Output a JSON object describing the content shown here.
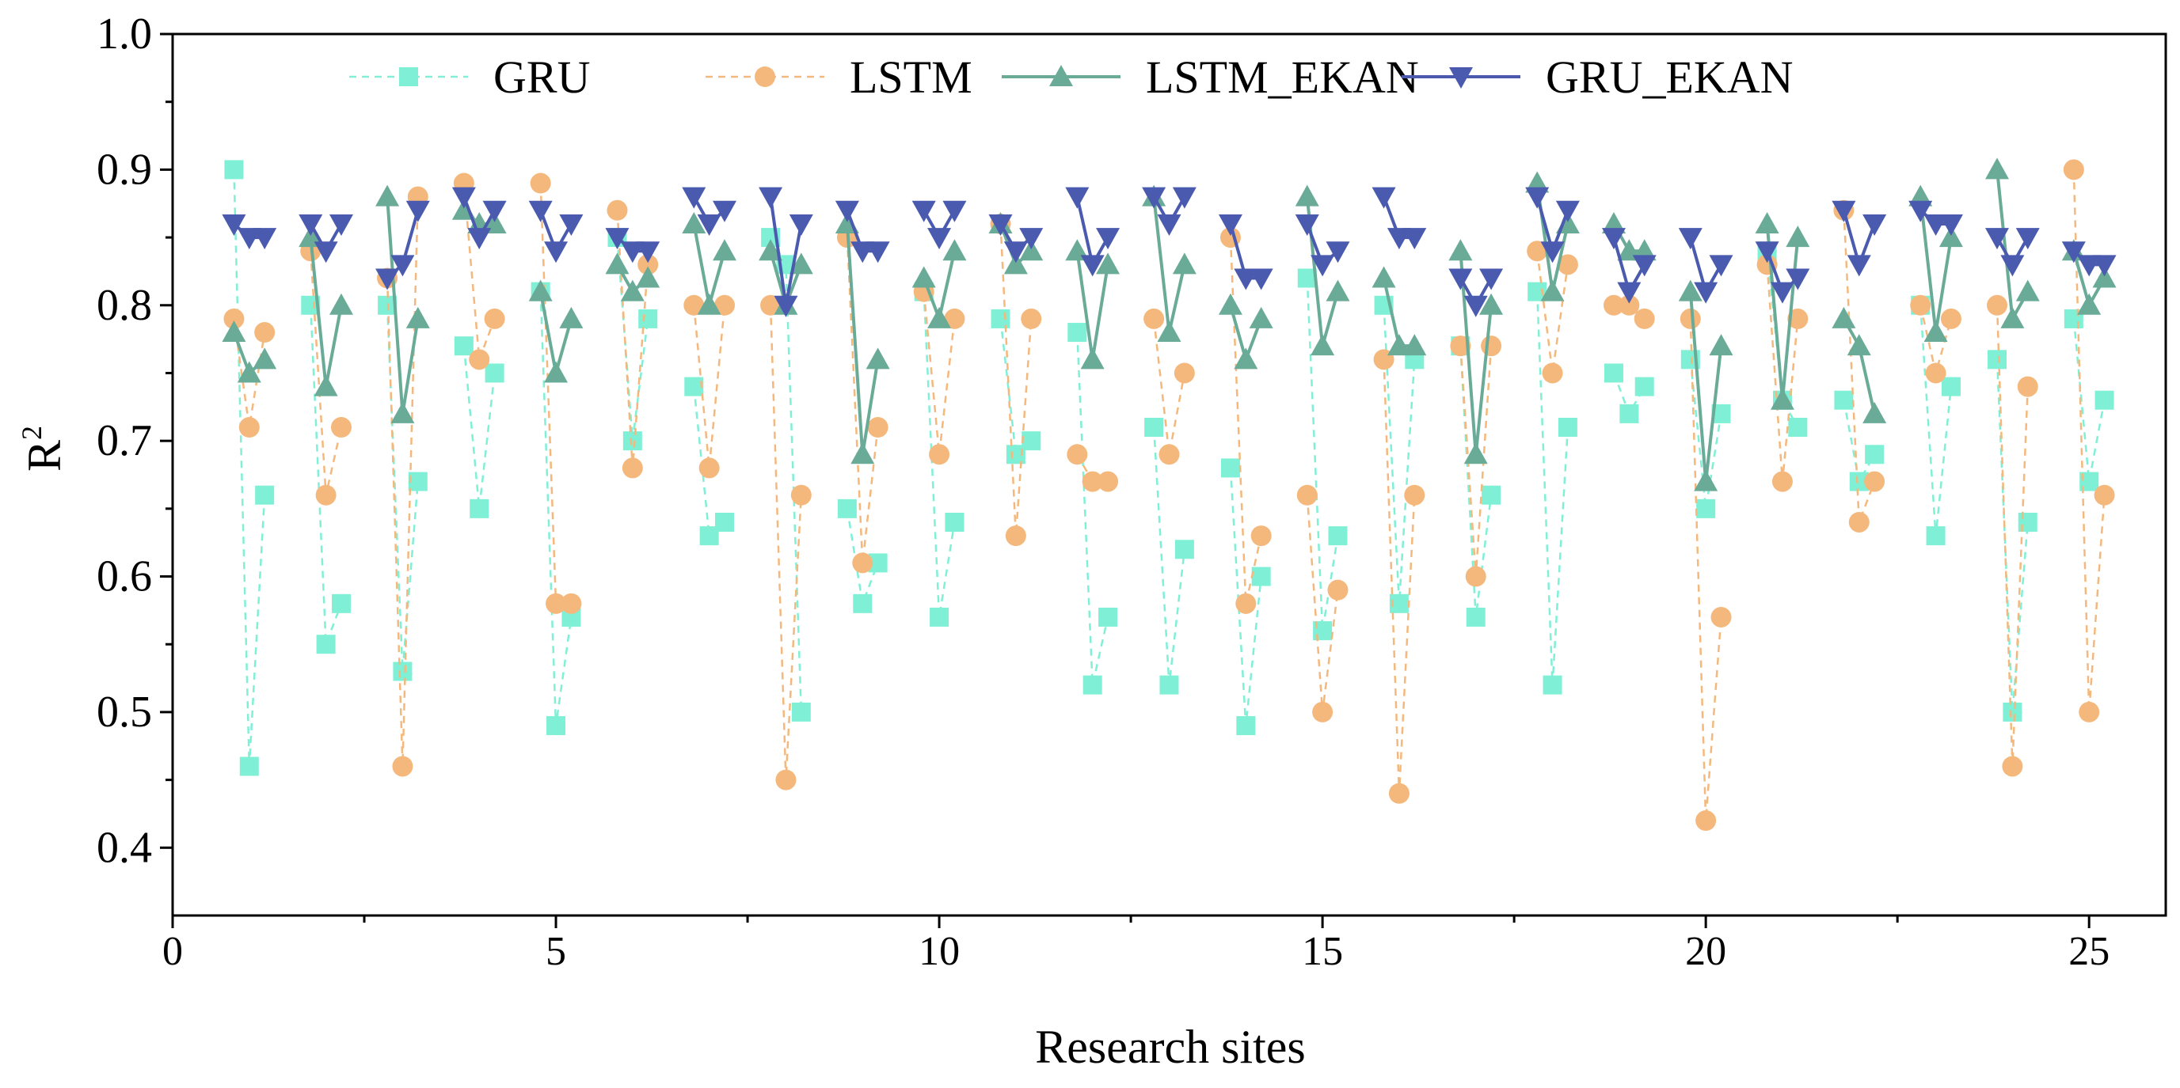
{
  "chart_data": {
    "type": "scatter",
    "title": "",
    "xlabel": "Research sites",
    "ylabel_main": "R",
    "ylabel_sup": "2",
    "xlim": [
      0,
      26
    ],
    "ylim": [
      0.35,
      1.0
    ],
    "xticks": [
      0,
      5,
      10,
      15,
      20,
      25
    ],
    "xtick_labels": [
      "0",
      "5",
      "10",
      "15",
      "20",
      "25"
    ],
    "yticks": [
      0.4,
      0.5,
      0.6,
      0.7,
      0.8,
      0.9,
      1.0
    ],
    "ytick_labels": [
      "0.4",
      "0.5",
      "0.6",
      "0.7",
      "0.8",
      "0.9",
      "1.0"
    ],
    "grid": false,
    "legend_position": "top",
    "point_offsets": [
      -0.2,
      0.0,
      0.2
    ],
    "sites": [
      1,
      2,
      3,
      4,
      5,
      6,
      7,
      8,
      9,
      10,
      11,
      12,
      13,
      14,
      15,
      16,
      17,
      18,
      19,
      20,
      21,
      22,
      23,
      24,
      25
    ],
    "series": [
      {
        "name": "GRU",
        "color": "#7ff0d6",
        "line": "dashed",
        "marker": "square",
        "values": [
          [
            0.9,
            0.46,
            0.66
          ],
          [
            0.8,
            0.55,
            0.58
          ],
          [
            0.8,
            0.53,
            0.67
          ],
          [
            0.77,
            0.65,
            0.75
          ],
          [
            0.81,
            0.49,
            0.57
          ],
          [
            0.85,
            0.7,
            0.79
          ],
          [
            0.74,
            0.63,
            0.64
          ],
          [
            0.85,
            0.83,
            0.5
          ],
          [
            0.65,
            0.58,
            0.61
          ],
          [
            0.81,
            0.57,
            0.64
          ],
          [
            0.79,
            0.69,
            0.7
          ],
          [
            0.78,
            0.52,
            0.57
          ],
          [
            0.71,
            0.52,
            0.62
          ],
          [
            0.68,
            0.49,
            0.6
          ],
          [
            0.82,
            0.56,
            0.63
          ],
          [
            0.8,
            0.58,
            0.76
          ],
          [
            0.77,
            0.57,
            0.66
          ],
          [
            0.81,
            0.52,
            0.71
          ],
          [
            0.75,
            0.72,
            0.74
          ],
          [
            0.76,
            0.65,
            0.72
          ],
          [
            0.84,
            0.73,
            0.71
          ],
          [
            0.73,
            0.67,
            0.69
          ],
          [
            0.8,
            0.63,
            0.74
          ],
          [
            0.76,
            0.5,
            0.64
          ],
          [
            0.79,
            0.67,
            0.73
          ]
        ]
      },
      {
        "name": "LSTM",
        "color": "#f5b87c",
        "line": "dashed",
        "marker": "circle",
        "values": [
          [
            0.79,
            0.71,
            0.78
          ],
          [
            0.84,
            0.66,
            0.71
          ],
          [
            0.82,
            0.46,
            0.88
          ],
          [
            0.89,
            0.76,
            0.79
          ],
          [
            0.89,
            0.58,
            0.58
          ],
          [
            0.87,
            0.68,
            0.83
          ],
          [
            0.8,
            0.68,
            0.8
          ],
          [
            0.8,
            0.45,
            0.66
          ],
          [
            0.85,
            0.61,
            0.71
          ],
          [
            0.81,
            0.69,
            0.79
          ],
          [
            0.86,
            0.63,
            0.79
          ],
          [
            0.69,
            0.67,
            0.67
          ],
          [
            0.79,
            0.69,
            0.75
          ],
          [
            0.85,
            0.58,
            0.63
          ],
          [
            0.66,
            0.5,
            0.59
          ],
          [
            0.76,
            0.44,
            0.66
          ],
          [
            0.77,
            0.6,
            0.77
          ],
          [
            0.84,
            0.75,
            0.83
          ],
          [
            0.8,
            0.8,
            0.79
          ],
          [
            0.79,
            0.42,
            0.57
          ],
          [
            0.83,
            0.67,
            0.79
          ],
          [
            0.87,
            0.64,
            0.67
          ],
          [
            0.8,
            0.75,
            0.79
          ],
          [
            0.8,
            0.46,
            0.74
          ],
          [
            0.9,
            0.5,
            0.66
          ]
        ]
      },
      {
        "name": "LSTM_EKAN",
        "color": "#6aab98",
        "line": "solid",
        "marker": "triangle-up",
        "values": [
          [
            0.78,
            0.75,
            0.76
          ],
          [
            0.85,
            0.74,
            0.8
          ],
          [
            0.88,
            0.72,
            0.79
          ],
          [
            0.87,
            0.86,
            0.86
          ],
          [
            0.81,
            0.75,
            0.79
          ],
          [
            0.83,
            0.81,
            0.82
          ],
          [
            0.86,
            0.8,
            0.84
          ],
          [
            0.84,
            0.8,
            0.83
          ],
          [
            0.86,
            0.69,
            0.76
          ],
          [
            0.82,
            0.79,
            0.84
          ],
          [
            0.86,
            0.83,
            0.84
          ],
          [
            0.84,
            0.76,
            0.83
          ],
          [
            0.88,
            0.78,
            0.83
          ],
          [
            0.8,
            0.76,
            0.79
          ],
          [
            0.88,
            0.77,
            0.81
          ],
          [
            0.82,
            0.77,
            0.77
          ],
          [
            0.84,
            0.69,
            0.8
          ],
          [
            0.89,
            0.81,
            0.86
          ],
          [
            0.86,
            0.84,
            0.84
          ],
          [
            0.81,
            0.67,
            0.77
          ],
          [
            0.86,
            0.73,
            0.85
          ],
          [
            0.79,
            0.77,
            0.72
          ],
          [
            0.88,
            0.78,
            0.85
          ],
          [
            0.9,
            0.79,
            0.81
          ],
          [
            0.84,
            0.8,
            0.82
          ]
        ]
      },
      {
        "name": "GRU_EKAN",
        "color": "#4a5aae",
        "line": "solid",
        "marker": "triangle-down",
        "values": [
          [
            0.86,
            0.85,
            0.85
          ],
          [
            0.86,
            0.84,
            0.86
          ],
          [
            0.82,
            0.83,
            0.87
          ],
          [
            0.88,
            0.85,
            0.87
          ],
          [
            0.87,
            0.84,
            0.86
          ],
          [
            0.85,
            0.84,
            0.84
          ],
          [
            0.88,
            0.86,
            0.87
          ],
          [
            0.88,
            0.8,
            0.86
          ],
          [
            0.87,
            0.84,
            0.84
          ],
          [
            0.87,
            0.85,
            0.87
          ],
          [
            0.86,
            0.84,
            0.85
          ],
          [
            0.88,
            0.83,
            0.85
          ],
          [
            0.88,
            0.86,
            0.88
          ],
          [
            0.86,
            0.82,
            0.82
          ],
          [
            0.86,
            0.83,
            0.84
          ],
          [
            0.88,
            0.85,
            0.85
          ],
          [
            0.82,
            0.8,
            0.82
          ],
          [
            0.88,
            0.84,
            0.87
          ],
          [
            0.85,
            0.81,
            0.83
          ],
          [
            0.85,
            0.81,
            0.83
          ],
          [
            0.84,
            0.81,
            0.82
          ],
          [
            0.87,
            0.83,
            0.86
          ],
          [
            0.87,
            0.86,
            0.86
          ],
          [
            0.85,
            0.83,
            0.85
          ],
          [
            0.84,
            0.83,
            0.83
          ]
        ]
      }
    ]
  }
}
